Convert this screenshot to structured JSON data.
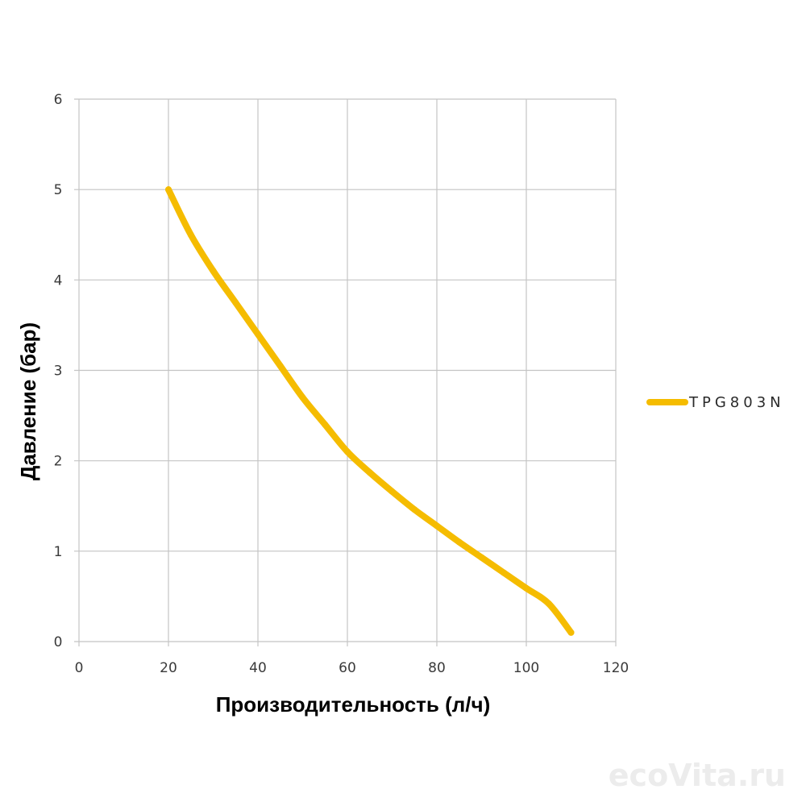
{
  "chart_data": {
    "type": "line",
    "title": "",
    "xlabel": "Производительность (л/ч)",
    "ylabel": "Давление (бар)",
    "xlim": [
      0,
      120
    ],
    "ylim": [
      0,
      6
    ],
    "x_ticks": [
      0,
      20,
      40,
      60,
      80,
      100,
      120
    ],
    "y_ticks": [
      0,
      1,
      2,
      3,
      4,
      5,
      6
    ],
    "grid": true,
    "legend_position": "right",
    "series": [
      {
        "name": "TPG803N",
        "color": "#F5BC00",
        "x": [
          20,
          25,
          30,
          35,
          40,
          45,
          50,
          55,
          60,
          65,
          70,
          75,
          80,
          85,
          90,
          95,
          100,
          105,
          110
        ],
        "y": [
          5.0,
          4.5,
          4.1,
          3.75,
          3.4,
          3.05,
          2.7,
          2.4,
          2.1,
          1.87,
          1.66,
          1.46,
          1.28,
          1.1,
          0.93,
          0.76,
          0.59,
          0.42,
          0.1
        ]
      }
    ]
  },
  "watermark": "ecoVita.ru"
}
